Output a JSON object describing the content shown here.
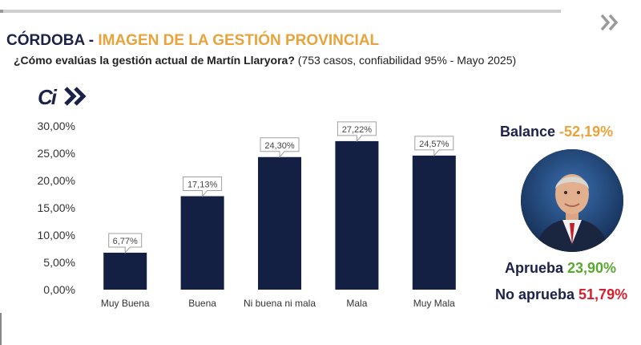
{
  "header": {
    "title_part1": "CÓRDOBA - ",
    "title_part2": "IMAGEN DE LA GESTIÓN PROVINCIAL",
    "question": "¿Cómo evalúas la gestión actual de Martín Llaryora?",
    "details": "(753 casos, confiabilidad 95% - Mayo 2025)"
  },
  "logo": {
    "text": "Ci",
    "icon": "double-chevron-icon"
  },
  "nav": {
    "icon": "double-chevron-right-icon"
  },
  "colors": {
    "navy": "#141f44",
    "accent": "#e8a33c",
    "green": "#5aa832",
    "red": "#d3202c"
  },
  "summary": {
    "balance_label": "Balance ",
    "balance_value": "-52,19%",
    "aprueba_label": "Aprueba ",
    "aprueba_value": "23,90%",
    "noaprueba_label": "No aprueba ",
    "noaprueba_value": "51,79%"
  },
  "chart_data": {
    "type": "bar",
    "categories": [
      "Muy Buena",
      "Buena",
      "Ni buena ni mala",
      "Mala",
      "Muy Mala"
    ],
    "values": [
      6.77,
      17.13,
      24.3,
      27.22,
      24.57
    ],
    "data_labels": [
      "6,77%",
      "17,13%",
      "24,30%",
      "27,22%",
      "24,57%"
    ],
    "ylim": [
      0,
      30
    ],
    "yticks": [
      "0,00%",
      "5,00%",
      "10,00%",
      "15,00%",
      "20,00%",
      "25,00%",
      "30,00%"
    ],
    "grid": false,
    "bar_color": "#141f44"
  }
}
